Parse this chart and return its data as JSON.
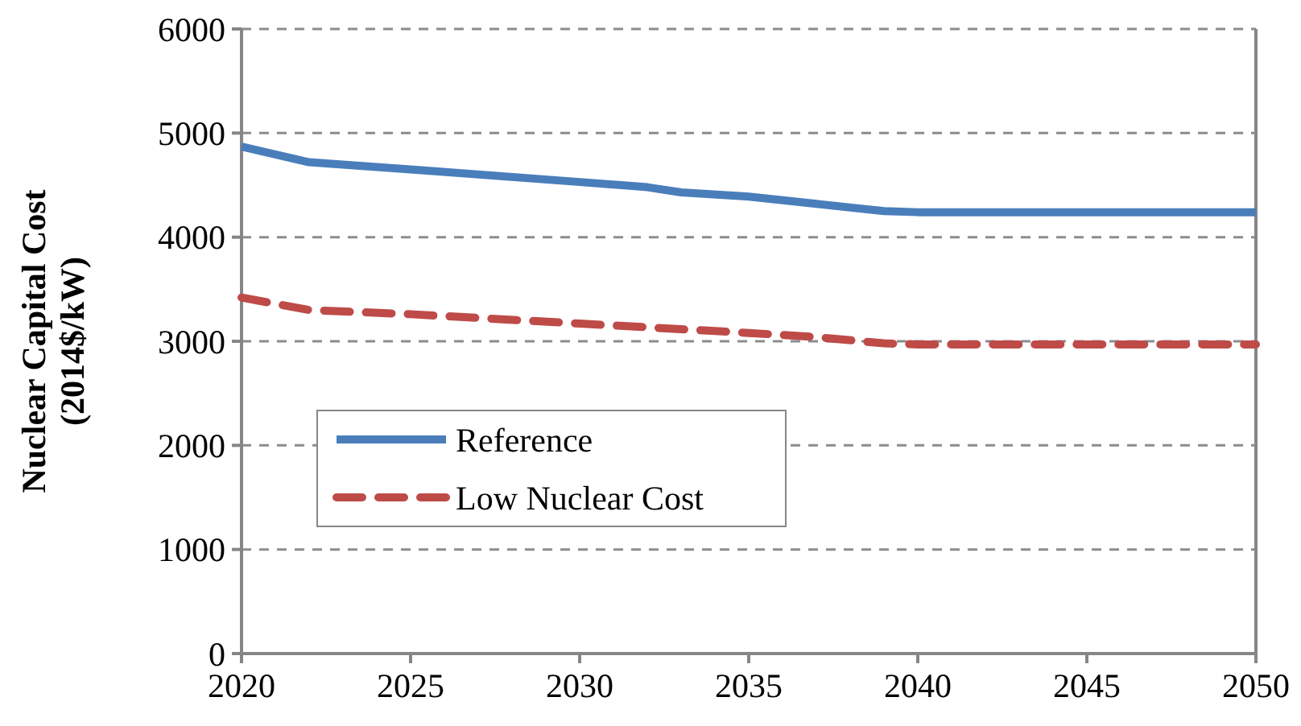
{
  "chart_data": {
    "type": "line",
    "ylabel": "Nuclear Capital Cost (2014$/kW)",
    "xlim": [
      2020,
      2050
    ],
    "xticks": [
      2020,
      2025,
      2030,
      2035,
      2040,
      2045,
      2050
    ],
    "ylim": [
      0,
      6000
    ],
    "yticks": [
      0,
      1000,
      2000,
      3000,
      4000,
      5000,
      6000
    ],
    "grid": "y",
    "legend": "left",
    "marker": "none",
    "series": [
      {
        "name": "Reference",
        "color": "#4a7ebb",
        "line_style": "solid",
        "x": [
          2020,
          2022,
          2025,
          2030,
          2032,
          2033,
          2035,
          2037,
          2039,
          2040,
          2050
        ],
        "values": [
          4870,
          4720,
          4650,
          4530,
          4480,
          4430,
          4390,
          4320,
          4250,
          4240,
          4240
        ]
      },
      {
        "name": "Low Nuclear Cost",
        "color": "#be4b48",
        "line_style": "dashed",
        "x": [
          2020,
          2022,
          2025,
          2030,
          2035,
          2037,
          2039,
          2040,
          2050
        ],
        "values": [
          3420,
          3300,
          3260,
          3170,
          3080,
          3040,
          2980,
          2970,
          2970
        ]
      }
    ]
  }
}
